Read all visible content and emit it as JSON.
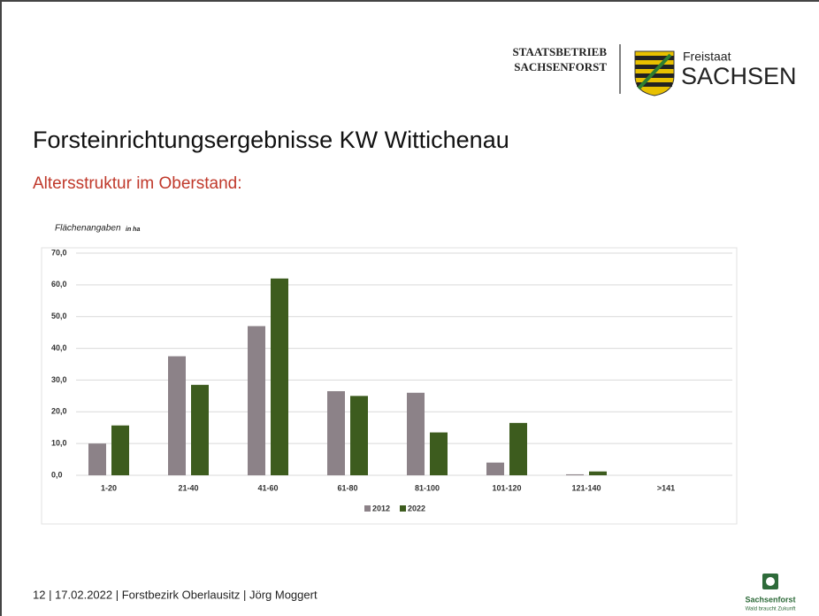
{
  "header": {
    "org_line1": "STAATSBETRIEB",
    "org_line2": "SACHSENFORST",
    "state_small": "Freistaat",
    "state_big": "SACHSEN"
  },
  "title": "Forsteinrichtungsergebnisse KW Wittichenau",
  "subtitle": "Altersstruktur im Oberstand:",
  "chart_data": {
    "type": "bar",
    "y_label": "Flächenangaben",
    "y_unit": "in ha",
    "categories": [
      "1-20",
      "21-40",
      "41-60",
      "61-80",
      "81-100",
      "101-120",
      "121-140",
      ">141"
    ],
    "series": [
      {
        "name": "2012",
        "color": "#8c8288",
        "values": [
          10,
          37.5,
          47,
          26.5,
          26,
          4,
          0.3,
          0
        ]
      },
      {
        "name": "2022",
        "color": "#3d5c1e",
        "values": [
          15.7,
          28.5,
          62,
          25,
          13.5,
          16.5,
          1.2,
          0
        ]
      }
    ],
    "ylim": [
      0,
      70
    ],
    "yticks": [
      {
        "value": 0,
        "label": "0,0"
      },
      {
        "value": 10,
        "label": "10,0"
      },
      {
        "value": 20,
        "label": "20,0"
      },
      {
        "value": 30,
        "label": "30,0"
      },
      {
        "value": 40,
        "label": "40,0"
      },
      {
        "value": 50,
        "label": "50,0"
      },
      {
        "value": 60,
        "label": "60,0"
      },
      {
        "value": 70,
        "label": "70,0"
      }
    ],
    "grid": true,
    "legend": "bottom"
  },
  "footer": {
    "text": "12 | 17.02.2022 | Forstbezirk Oberlausitz | Jörg Moggert",
    "logo_name": "Sachsenforst",
    "logo_slogan": "Wald braucht Zukunft"
  }
}
